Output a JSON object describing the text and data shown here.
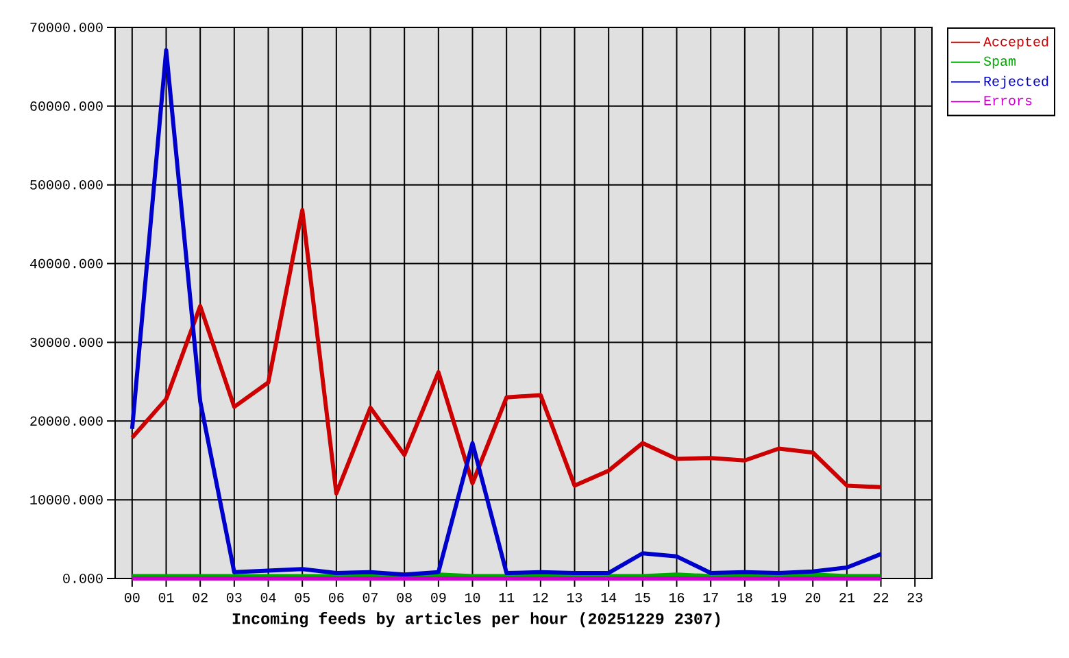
{
  "chart_data": {
    "type": "line",
    "xlabel": "Incoming feeds by articles per hour (20251229 2307)",
    "categories": [
      "00",
      "01",
      "02",
      "03",
      "04",
      "05",
      "06",
      "07",
      "08",
      "09",
      "10",
      "11",
      "12",
      "13",
      "14",
      "15",
      "16",
      "17",
      "18",
      "19",
      "20",
      "21",
      "22",
      "23"
    ],
    "series": [
      {
        "name": "Accepted",
        "color": "#cc0000",
        "values": [
          17900,
          22800,
          34600,
          21800,
          24900,
          46800,
          10800,
          21700,
          15700,
          26200,
          12100,
          23000,
          23300,
          11800,
          13700,
          17200,
          15200,
          15300,
          15000,
          16500,
          16000,
          11800,
          11600,
          null
        ]
      },
      {
        "name": "Spam",
        "color": "#00aa00",
        "values": [
          300,
          300,
          300,
          300,
          300,
          300,
          300,
          500,
          300,
          500,
          300,
          300,
          500,
          300,
          300,
          300,
          500,
          300,
          400,
          300,
          500,
          300,
          300,
          null
        ]
      },
      {
        "name": "Rejected",
        "color": "#0000cc",
        "values": [
          19000,
          67100,
          22500,
          800,
          1000,
          1200,
          700,
          800,
          500,
          800,
          17200,
          700,
          800,
          700,
          700,
          3200,
          2800,
          700,
          800,
          700,
          900,
          1400,
          3100,
          null
        ]
      },
      {
        "name": "Errors",
        "color": "#cc00cc",
        "values": [
          0,
          0,
          0,
          0,
          0,
          0,
          0,
          0,
          0,
          0,
          0,
          0,
          0,
          0,
          0,
          0,
          0,
          0,
          0,
          0,
          0,
          0,
          0,
          null
        ]
      }
    ],
    "ylim": [
      0,
      70000
    ],
    "yticks": [
      {
        "value": 0,
        "label": "0.000"
      },
      {
        "value": 10000,
        "label": "10000.000"
      },
      {
        "value": 20000,
        "label": "20000.000"
      },
      {
        "value": 30000,
        "label": "30000.000"
      },
      {
        "value": 40000,
        "label": "40000.000"
      },
      {
        "value": 50000,
        "label": "50000.000"
      },
      {
        "value": 60000,
        "label": "60000.000"
      },
      {
        "value": 70000,
        "label": "70000.000"
      }
    ],
    "grid": true,
    "legend": "top right"
  }
}
